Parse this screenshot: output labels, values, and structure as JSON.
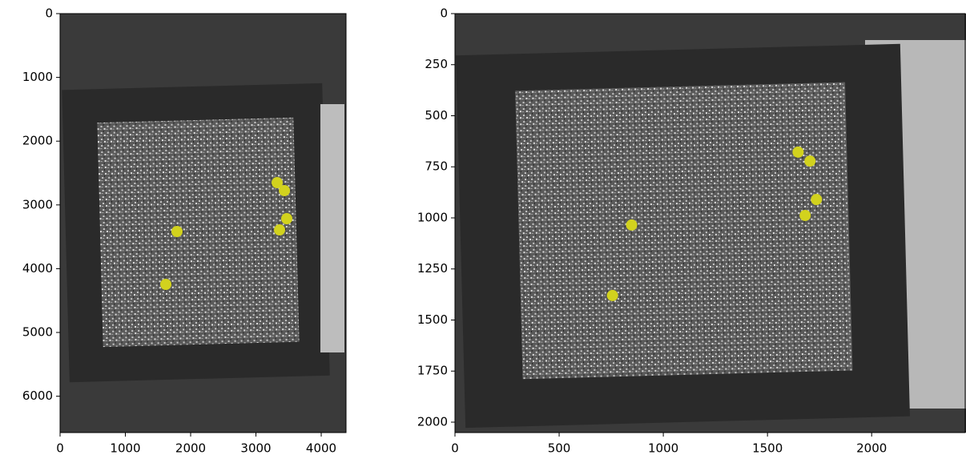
{
  "chart_data": [
    {
      "type": "scatter",
      "x": [
        3325,
        3436,
        3472,
        3362,
        1791,
        1620
      ],
      "y": [
        2651,
        2776,
        3216,
        3392,
        3417,
        4246
      ],
      "color": "#d2d21e",
      "xlim": [
        0,
        4380
      ],
      "ylim": [
        6570,
        0
      ],
      "xticks": [
        0,
        1000,
        2000,
        3000,
        4000
      ],
      "yticks": [
        0,
        1000,
        2000,
        3000,
        4000,
        5000,
        6000
      ]
    },
    {
      "type": "scatter",
      "x": [
        1647,
        1704,
        1735,
        1681,
        848,
        756
      ],
      "y": [
        678,
        722,
        910,
        988,
        1035,
        1380
      ],
      "color": "#d2d21e",
      "xlim": [
        0,
        2449
      ],
      "ylim": [
        2051,
        0
      ],
      "xticks": [
        0,
        500,
        1000,
        1500,
        2000
      ],
      "yticks": [
        0,
        250,
        500,
        750,
        1000,
        1250,
        1500,
        1750,
        2000
      ]
    }
  ]
}
